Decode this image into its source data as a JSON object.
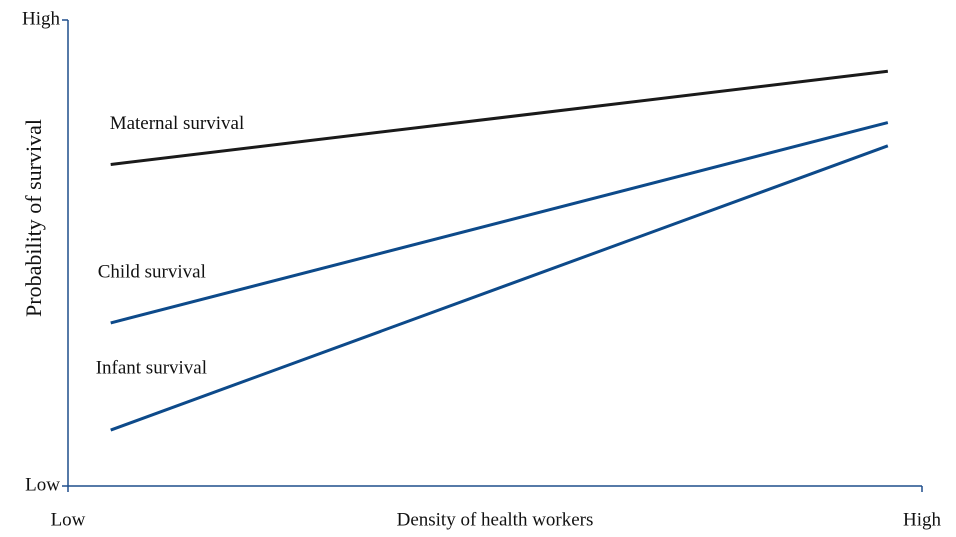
{
  "chart_data": {
    "type": "line",
    "x_label": "Density of health workers",
    "y_label": "Probability of survival",
    "x": [
      5,
      96
    ],
    "series": [
      {
        "name": "Maternal survival",
        "color": "#1a1a1a",
        "values": [
          69,
          89
        ]
      },
      {
        "name": "Child survival",
        "color": "#0d4a8a",
        "values": [
          35,
          78
        ]
      },
      {
        "name": "Infant survival",
        "color": "#0d4a8a",
        "values": [
          12,
          73
        ]
      }
    ],
    "xlim": [
      0,
      100
    ],
    "xticks": [
      {
        "value": 0,
        "label": "Low"
      },
      {
        "value": 100,
        "label": "High"
      }
    ],
    "ylim": [
      0,
      100
    ],
    "yticks": [
      {
        "value": 0,
        "label": "Low"
      },
      {
        "value": 100,
        "label": "High"
      }
    ],
    "axis_color": "#1f4e8c"
  }
}
